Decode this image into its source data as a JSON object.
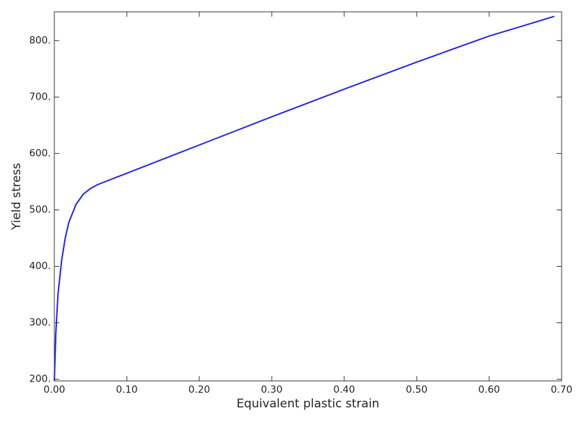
{
  "chart_data": {
    "type": "line",
    "x_label": "Equivalent plastic strain",
    "y_label": "Yield stress",
    "x": [
      0,
      0.002,
      0.005,
      0.01,
      0.015,
      0.02,
      0.03,
      0.04,
      0.05,
      0.06,
      0.08,
      0.1,
      0.2,
      0.3,
      0.4,
      0.5,
      0.6,
      0.69
    ],
    "values": [
      197,
      280,
      350,
      410,
      450,
      478,
      510,
      528,
      538,
      545,
      555,
      565,
      615,
      665,
      714,
      762,
      808,
      843
    ],
    "color": "#2222e6",
    "xlim": [
      0,
      0.7
    ],
    "ylim": [
      197,
      851
    ],
    "xticks": [
      {
        "value": 0,
        "label": "0.00"
      },
      {
        "value": 0.1,
        "label": "0.10"
      },
      {
        "value": 0.2,
        "label": "0.20"
      },
      {
        "value": 0.3,
        "label": "0.30"
      },
      {
        "value": 0.4,
        "label": "0.40"
      },
      {
        "value": 0.5,
        "label": "0.50"
      },
      {
        "value": 0.6,
        "label": "0.60"
      },
      {
        "value": 0.7,
        "label": "0.70"
      }
    ],
    "yticks": [
      {
        "value": 200,
        "label": "200."
      },
      {
        "value": 300,
        "label": "300."
      },
      {
        "value": 400,
        "label": "400."
      },
      {
        "value": 500,
        "label": "500."
      },
      {
        "value": 600,
        "label": "600."
      },
      {
        "value": 700,
        "label": "700."
      },
      {
        "value": 800,
        "label": "800."
      }
    ],
    "grid": false
  }
}
